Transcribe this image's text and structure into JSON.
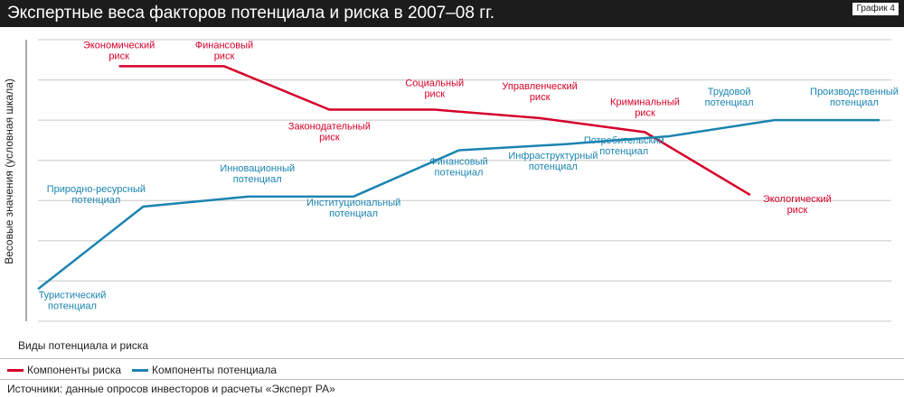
{
  "header": {
    "title": "Экспертные веса факторов потенциала и риска в 2007–08 гг.",
    "badge": "График 4"
  },
  "colors": {
    "risk": "#d6002a",
    "potential": "#1b84b0",
    "grid": "#c8c8c8",
    "header_bg": "#1c1c1c"
  },
  "footer": {
    "source": "Источники: данные опросов инвесторов и расчеты «Эксперт РА»"
  },
  "chart_data": {
    "type": "line",
    "xlabel": "Виды потенциала и риска",
    "ylabel": "Весовые значения (условная шкала)",
    "ylim": [
      0,
      7
    ],
    "grid": true,
    "legend_position": "bottom-left",
    "series": [
      {
        "name": "Компоненты риска",
        "color": "#d6002a",
        "points": [
          {
            "x": 0.77,
            "y": 6.34,
            "label": "Экономический риск"
          },
          {
            "x": 1.77,
            "y": 6.34,
            "label": "Финансовый риск"
          },
          {
            "x": 2.77,
            "y": 5.26,
            "label": "Законодательный риск"
          },
          {
            "x": 3.77,
            "y": 5.26,
            "label": "Социальный риск"
          },
          {
            "x": 4.77,
            "y": 5.05,
            "label": "Управленческий риск"
          },
          {
            "x": 5.77,
            "y": 4.7,
            "label": "Криминальный риск"
          },
          {
            "x": 6.77,
            "y": 3.14,
            "label": "Экологический риск"
          }
        ]
      },
      {
        "name": "Компоненты потенциала",
        "color": "#1b84b0",
        "points": [
          {
            "x": 0,
            "y": 0.8,
            "label": "Туристический потенциал"
          },
          {
            "x": 1,
            "y": 2.85,
            "label": "Природно-ресурсный потенциал"
          },
          {
            "x": 2,
            "y": 3.1,
            "label": "Инновационный потенциал"
          },
          {
            "x": 3,
            "y": 3.1,
            "label": "Институциональный потенциал"
          },
          {
            "x": 4,
            "y": 4.25,
            "label": "Финансовый потенциал"
          },
          {
            "x": 5,
            "y": 4.4,
            "label": "Инфраструктурный потенциал"
          },
          {
            "x": 6,
            "y": 4.6,
            "label": "Потребительский потенциал"
          },
          {
            "x": 7,
            "y": 5.0,
            "label": "Трудовой потенциал"
          },
          {
            "x": 8,
            "y": 5.0,
            "label": "Производственный потенциал"
          }
        ]
      }
    ]
  }
}
